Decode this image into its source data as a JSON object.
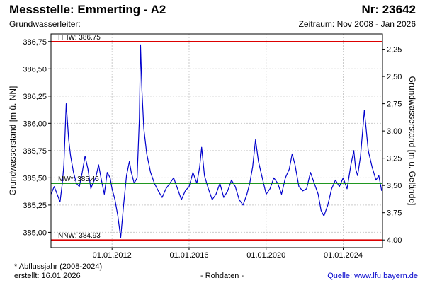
{
  "header": {
    "title": "Messstelle: Emmerting - A2",
    "station_no": "Nr: 23642",
    "aquifer": "Grundwasserleiter:",
    "period": "Zeitraum: Nov 2008 - Jan 2026"
  },
  "footer": {
    "footnote": "* Abflussjahr (2008-2024)",
    "created": "erstellt:  16.01.2026",
    "raw_data": "- Rohdaten -",
    "source": "Quelle: www.lfu.bayern.de"
  },
  "colors": {
    "series": "#0000cc",
    "extreme_lines": "#dd0000",
    "mean_line": "#008800",
    "grid": "#cccccc",
    "frame": "#000000"
  },
  "chart_data": {
    "type": "line",
    "xlabel": "",
    "ylabel": "Grundwasserstand [m ü. NN]",
    "ylabel_right": "Grundwasserstand [m u. Gelände]",
    "xlim": [
      2008.83,
      2026.04
    ],
    "ylim": [
      384.86,
      386.82
    ],
    "ylim_right": [
      4.07,
      2.11
    ],
    "x_ticks": [
      {
        "x": 2012.0,
        "label": "01.01.2012"
      },
      {
        "x": 2016.0,
        "label": "01.01.2016"
      },
      {
        "x": 2020.0,
        "label": "01.01.2020"
      },
      {
        "x": 2024.0,
        "label": "01.01.2024"
      }
    ],
    "y_ticks": [
      {
        "v": 385.0,
        "label": "385,00"
      },
      {
        "v": 385.25,
        "label": "385,25"
      },
      {
        "v": 385.5,
        "label": "385,50"
      },
      {
        "v": 385.75,
        "label": "385,75"
      },
      {
        "v": 386.0,
        "label": "386,00"
      },
      {
        "v": 386.25,
        "label": "386,25"
      },
      {
        "v": 386.5,
        "label": "386,50"
      },
      {
        "v": 386.75,
        "label": "386,75"
      }
    ],
    "y_ticks_right": [
      {
        "v": 2.25,
        "label": "2,25"
      },
      {
        "v": 2.5,
        "label": "2,50"
      },
      {
        "v": 2.75,
        "label": "2,75"
      },
      {
        "v": 3.0,
        "label": "3,00"
      },
      {
        "v": 3.25,
        "label": "3,25"
      },
      {
        "v": 3.5,
        "label": "3,50"
      },
      {
        "v": 3.75,
        "label": "3,75"
      },
      {
        "v": 4.0,
        "label": "4,00"
      }
    ],
    "reference_lines": [
      {
        "name": "HHW",
        "label": "HHW: 386.75",
        "value": 386.75,
        "color": "#dd0000"
      },
      {
        "name": "MW",
        "label": "MW*: 385.45",
        "value": 385.45,
        "color": "#008800"
      },
      {
        "name": "NNW",
        "label": "NNW: 384.93",
        "value": 384.93,
        "color": "#dd0000"
      }
    ],
    "grid": true,
    "series": [
      {
        "name": "",
        "x": [
          2008.83,
          2009.0,
          2009.15,
          2009.3,
          2009.42,
          2009.5,
          2009.62,
          2009.75,
          2009.85,
          2010.0,
          2010.15,
          2010.3,
          2010.45,
          2010.6,
          2010.75,
          2010.9,
          2011.0,
          2011.15,
          2011.3,
          2011.45,
          2011.6,
          2011.75,
          2011.9,
          2012.0,
          2012.15,
          2012.3,
          2012.45,
          2012.6,
          2012.75,
          2012.9,
          2013.0,
          2013.15,
          2013.3,
          2013.42,
          2013.48,
          2013.55,
          2013.65,
          2013.8,
          2014.0,
          2014.2,
          2014.4,
          2014.6,
          2014.8,
          2015.0,
          2015.2,
          2015.4,
          2015.6,
          2015.8,
          2016.0,
          2016.2,
          2016.4,
          2016.55,
          2016.65,
          2016.8,
          2017.0,
          2017.2,
          2017.4,
          2017.6,
          2017.8,
          2018.0,
          2018.2,
          2018.4,
          2018.6,
          2018.8,
          2019.0,
          2019.15,
          2019.3,
          2019.45,
          2019.6,
          2019.8,
          2020.0,
          2020.2,
          2020.4,
          2020.6,
          2020.8,
          2021.0,
          2021.2,
          2021.35,
          2021.5,
          2021.7,
          2021.9,
          2022.1,
          2022.3,
          2022.5,
          2022.7,
          2022.85,
          2023.0,
          2023.2,
          2023.4,
          2023.6,
          2023.8,
          2024.0,
          2024.2,
          2024.4,
          2024.55,
          2024.65,
          2024.75,
          2024.9,
          2025.1,
          2025.3,
          2025.5,
          2025.7,
          2025.85,
          2026.0
        ],
        "values": [
          385.35,
          385.42,
          385.35,
          385.28,
          385.45,
          385.62,
          386.18,
          385.85,
          385.7,
          385.55,
          385.45,
          385.42,
          385.55,
          385.7,
          385.58,
          385.4,
          385.45,
          385.5,
          385.62,
          385.48,
          385.35,
          385.55,
          385.5,
          385.4,
          385.3,
          385.15,
          384.95,
          385.25,
          385.52,
          385.65,
          385.55,
          385.45,
          385.5,
          386.05,
          386.72,
          386.3,
          385.95,
          385.72,
          385.55,
          385.45,
          385.38,
          385.32,
          385.4,
          385.45,
          385.5,
          385.4,
          385.3,
          385.38,
          385.42,
          385.55,
          385.45,
          385.6,
          385.78,
          385.52,
          385.4,
          385.3,
          385.35,
          385.45,
          385.32,
          385.38,
          385.48,
          385.42,
          385.3,
          385.25,
          385.35,
          385.45,
          385.6,
          385.85,
          385.65,
          385.5,
          385.35,
          385.4,
          385.5,
          385.45,
          385.35,
          385.5,
          385.58,
          385.72,
          385.62,
          385.42,
          385.38,
          385.4,
          385.55,
          385.45,
          385.35,
          385.2,
          385.15,
          385.25,
          385.4,
          385.48,
          385.42,
          385.5,
          385.4,
          385.62,
          385.75,
          385.58,
          385.52,
          385.7,
          386.12,
          385.75,
          385.6,
          385.48,
          385.52,
          385.38
        ]
      }
    ]
  }
}
